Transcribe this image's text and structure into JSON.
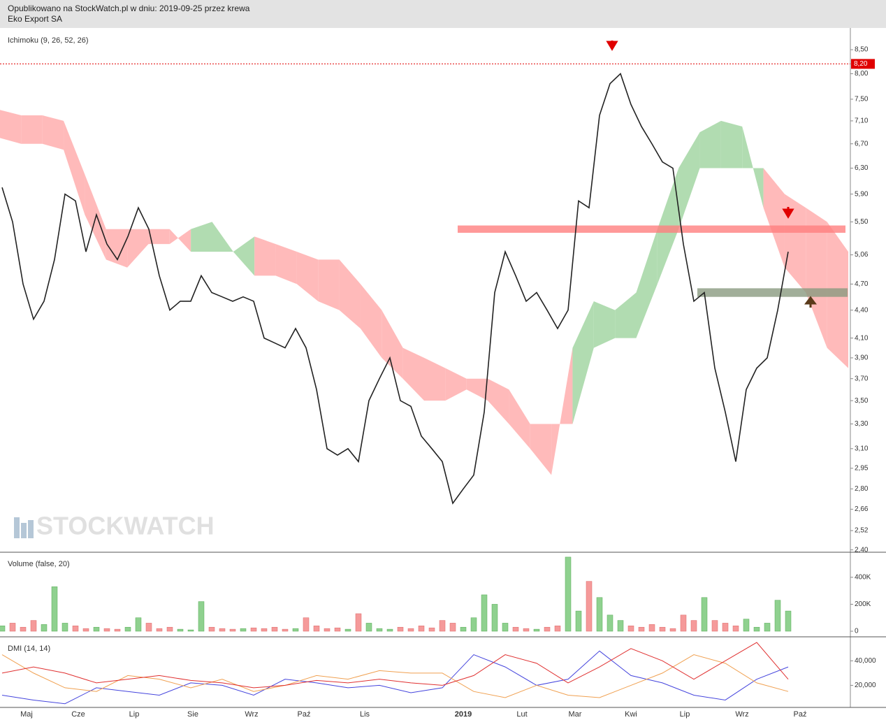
{
  "header": {
    "line1": "Opublikowano na StockWatch.pl w dniu: 2019-09-25 przez krewa",
    "line2": "Eko Export SA"
  },
  "watermark": "STOCKWATCH",
  "time_axis": {
    "labels": [
      "Maj",
      "Cze",
      "Lip",
      "Sie",
      "Wrz",
      "Paź",
      "Lis",
      "2019",
      "Lut",
      "Mar",
      "Kwi",
      "Lip",
      "Wrz",
      "Paź"
    ]
  },
  "chart_data": [
    {
      "type": "line",
      "title": "Ichimoku (9, 26, 52, 26)",
      "log_scale": true,
      "color": "#222222",
      "ylim": [
        2.39,
        8.98
      ],
      "yticks": [
        {
          "value": 8.5,
          "label": "8,50"
        },
        {
          "value": 8.0,
          "label": "8,00"
        },
        {
          "value": 7.5,
          "label": "7,50"
        },
        {
          "value": 7.1,
          "label": "7,10"
        },
        {
          "value": 6.7,
          "label": "6,70"
        },
        {
          "value": 6.3,
          "label": "6,30"
        },
        {
          "value": 5.9,
          "label": "5,90"
        },
        {
          "value": 5.5,
          "label": "5,50"
        },
        {
          "value": 5.06,
          "label": "5,06"
        },
        {
          "value": 4.7,
          "label": "4,70"
        },
        {
          "value": 4.4,
          "label": "4,40"
        },
        {
          "value": 4.1,
          "label": "4,10"
        },
        {
          "value": 3.9,
          "label": "3,90"
        },
        {
          "value": 3.7,
          "label": "3,70"
        },
        {
          "value": 3.5,
          "label": "3,50"
        },
        {
          "value": 3.3,
          "label": "3,30"
        },
        {
          "value": 3.1,
          "label": "3,10"
        },
        {
          "value": 2.95,
          "label": "2,95"
        },
        {
          "value": 2.8,
          "label": "2,80"
        },
        {
          "value": 2.66,
          "label": "2,66"
        },
        {
          "value": 2.52,
          "label": "2,52"
        },
        {
          "value": 2.4,
          "label": "2,40"
        }
      ],
      "values": [
        6.0,
        5.5,
        4.7,
        4.3,
        4.5,
        5.0,
        5.9,
        5.8,
        5.1,
        5.6,
        5.2,
        5.0,
        5.3,
        5.7,
        5.4,
        4.8,
        4.4,
        4.5,
        4.5,
        4.8,
        4.6,
        4.55,
        4.5,
        4.55,
        4.5,
        4.1,
        4.05,
        4.0,
        4.2,
        4.0,
        3.6,
        3.1,
        3.05,
        3.1,
        3.0,
        3.5,
        3.7,
        3.9,
        3.5,
        3.45,
        3.2,
        3.1,
        3.0,
        2.7,
        2.8,
        2.9,
        3.4,
        4.6,
        5.1,
        4.8,
        4.5,
        4.6,
        4.4,
        4.2,
        4.4,
        5.8,
        5.7,
        7.2,
        7.8,
        8.0,
        7.4,
        7.0,
        6.7,
        6.4,
        6.3,
        5.2,
        4.5,
        4.6,
        3.8,
        3.4,
        3.0,
        3.6,
        3.8,
        3.9,
        4.4,
        5.1
      ],
      "cloud": {
        "up_color": "#a8d8a8",
        "down_color": "#ffb3b3",
        "span_a": [
          6.8,
          6.7,
          6.7,
          6.6,
          5.6,
          5.0,
          4.9,
          5.2,
          5.2,
          5.4,
          5.5,
          5.1,
          4.8,
          4.8,
          4.7,
          4.5,
          4.4,
          4.2,
          3.9,
          3.7,
          3.5,
          3.5,
          3.6,
          3.5,
          3.3,
          3.1,
          2.9,
          4.0,
          4.5,
          4.4,
          4.6,
          5.4,
          6.3,
          6.9,
          7.1,
          7.0,
          5.7,
          4.9,
          4.6,
          4.0,
          3.8
        ],
        "span_b": [
          7.3,
          7.2,
          7.2,
          7.1,
          6.2,
          5.4,
          5.4,
          5.4,
          5.4,
          5.1,
          5.1,
          5.1,
          5.3,
          5.2,
          5.1,
          5.0,
          5.0,
          4.7,
          4.4,
          4.0,
          3.9,
          3.8,
          3.7,
          3.7,
          3.6,
          3.3,
          3.3,
          3.3,
          4.0,
          4.1,
          4.1,
          4.7,
          5.4,
          6.3,
          6.3,
          6.3,
          6.3,
          5.9,
          5.7,
          5.5,
          5.1
        ]
      },
      "zones": [
        {
          "low": 5.35,
          "high": 5.45,
          "color": "#ff7f7f"
        },
        {
          "low": 4.55,
          "high": 4.65,
          "color": "#8a9a80"
        }
      ],
      "price_marker": {
        "value": 8.2,
        "label": "8,20",
        "color": "#e00000"
      }
    },
    {
      "type": "bar",
      "title": "Volume (false, 20)",
      "up_color": "#8fd18f",
      "down_color": "#f59a9a",
      "ylim": [
        0,
        560000
      ],
      "yticks": [
        {
          "value": 400000,
          "label": "400K"
        },
        {
          "value": 200000,
          "label": "200K"
        },
        0
      ],
      "values": [
        40000,
        60000,
        30000,
        80000,
        50000,
        330000,
        60000,
        40000,
        20000,
        30000,
        20000,
        15000,
        30000,
        100000,
        60000,
        20000,
        30000,
        15000,
        10000,
        220000,
        30000,
        20000,
        15000,
        20000,
        25000,
        20000,
        30000,
        15000,
        20000,
        100000,
        40000,
        20000,
        25000,
        15000,
        130000,
        60000,
        20000,
        15000,
        30000,
        20000,
        40000,
        25000,
        80000,
        60000,
        30000,
        100000,
        270000,
        200000,
        60000,
        30000,
        20000,
        15000,
        30000,
        40000,
        550000,
        150000,
        370000,
        250000,
        120000,
        80000,
        40000,
        30000,
        50000,
        30000,
        20000,
        120000,
        80000,
        250000,
        80000,
        60000,
        40000,
        90000,
        30000,
        60000,
        230000,
        150000
      ]
    },
    {
      "type": "line",
      "title": "DMI (14, 14)",
      "ylim": [
        2,
        59
      ],
      "yticks": [
        {
          "value": 40,
          "label": "40,000"
        },
        {
          "value": 20,
          "label": "20,000"
        }
      ],
      "series": [
        {
          "color": "#4444dd",
          "values": [
            12,
            8,
            5,
            18,
            15,
            12,
            22,
            20,
            12,
            25,
            22,
            18,
            20,
            14,
            18,
            45,
            35,
            20,
            25,
            48,
            28,
            22,
            12,
            8,
            25,
            35
          ]
        },
        {
          "color": "#f0a050",
          "values": [
            45,
            30,
            18,
            15,
            28,
            25,
            18,
            25,
            15,
            20,
            28,
            25,
            32,
            30,
            30,
            15,
            10,
            20,
            12,
            10,
            20,
            30,
            45,
            38,
            22,
            15
          ]
        },
        {
          "color": "#e03030",
          "values": [
            30,
            35,
            30,
            22,
            25,
            28,
            24,
            22,
            18,
            20,
            24,
            22,
            25,
            22,
            20,
            28,
            45,
            38,
            22,
            35,
            50,
            40,
            25,
            40,
            55,
            25
          ]
        }
      ]
    }
  ]
}
